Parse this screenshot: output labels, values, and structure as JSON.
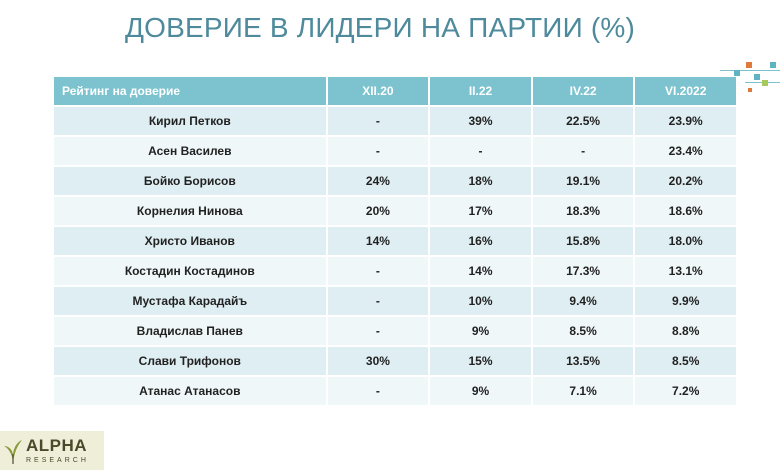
{
  "title": "ДОВЕРИЕ В ЛИДЕРИ НА ПАРТИИ (%)",
  "table": {
    "headers": [
      "Рейтинг на доверие",
      "XII.20",
      "II.22",
      "IV.22",
      "VI.2022"
    ],
    "rows": [
      [
        "Кирил Петков",
        "-",
        "39%",
        "22.5%",
        "23.9%"
      ],
      [
        "Асен Василев",
        "-",
        "-",
        "-",
        "23.4%"
      ],
      [
        "Бойко Борисов",
        "24%",
        "18%",
        "19.1%",
        "20.2%"
      ],
      [
        "Корнелия Нинова",
        "20%",
        "17%",
        "18.3%",
        "18.6%"
      ],
      [
        "Христо Иванов",
        "14%",
        "16%",
        "15.8%",
        "18.0%"
      ],
      [
        "Костадин Костадинов",
        "-",
        "14%",
        "17.3%",
        "13.1%"
      ],
      [
        "Мустафа Карадайъ",
        "-",
        "10%",
        "9.4%",
        "9.9%"
      ],
      [
        "Владислав Панев",
        "-",
        "9%",
        "8.5%",
        "8.8%"
      ],
      [
        "Слави Трифонов",
        "30%",
        "15%",
        "13.5%",
        "8.5%"
      ],
      [
        "Атанас Атанасов",
        "-",
        "9%",
        "7.1%",
        "7.2%"
      ]
    ]
  },
  "logo": {
    "word": "ALPHA",
    "sub": "RESEARCH"
  },
  "colors": {
    "title": "#4e8a9b",
    "header_bg": "#7cc3cf",
    "row_odd": "#dfeef2",
    "row_even": "#f0f7f9",
    "deco_orange": "#e07a3c",
    "deco_teal": "#5fb3c2",
    "deco_green": "#a7c95a",
    "logo_bg": "#efeed9"
  }
}
